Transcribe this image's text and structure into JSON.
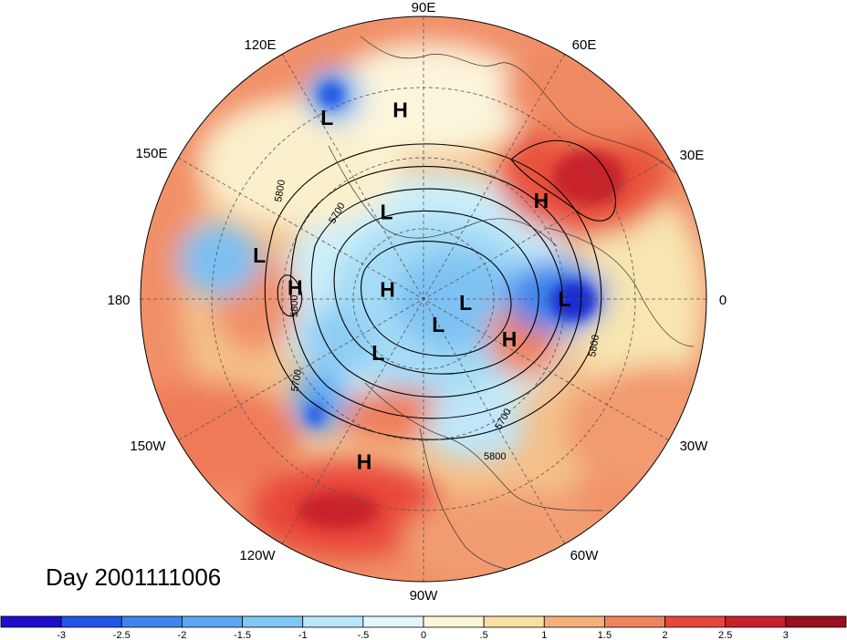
{
  "title": "Day 2001111006",
  "longitude_labels": [
    {
      "text": "90E",
      "pos": "top"
    },
    {
      "text": "60E",
      "pos": "top-right"
    },
    {
      "text": "30E",
      "pos": "right-upper"
    },
    {
      "text": "0",
      "pos": "right"
    },
    {
      "text": "30W",
      "pos": "right-lower"
    },
    {
      "text": "60W",
      "pos": "bottom-right"
    },
    {
      "text": "90W",
      "pos": "bottom"
    },
    {
      "text": "120W",
      "pos": "bottom-left"
    },
    {
      "text": "150W",
      "pos": "left-lower"
    },
    {
      "text": "180",
      "pos": "left"
    },
    {
      "text": "150E",
      "pos": "left-upper"
    },
    {
      "text": "120E",
      "pos": "top-left"
    }
  ],
  "pressure_centers": [
    {
      "type": "L",
      "lon_deg": 118,
      "colat_deg": 72
    },
    {
      "type": "H",
      "lon_deg": 97,
      "colat_deg": 68
    },
    {
      "type": "H",
      "lon_deg": 40,
      "colat_deg": 57
    },
    {
      "type": "L",
      "lon_deg": 113,
      "colat_deg": 37
    },
    {
      "type": "L",
      "lon_deg": 165,
      "colat_deg": 62
    },
    {
      "type": "H",
      "lon_deg": 175,
      "colat_deg": 49
    },
    {
      "type": "H",
      "lon_deg": 165,
      "colat_deg": 15
    },
    {
      "type": "L",
      "lon_deg": 355,
      "colat_deg": 17
    },
    {
      "type": "L",
      "lon_deg": 230,
      "colat_deg": 28
    },
    {
      "type": "L",
      "lon_deg": 300,
      "colat_deg": 12
    },
    {
      "type": "H",
      "lon_deg": 335,
      "colat_deg": 37
    },
    {
      "type": "L",
      "lon_deg": 0,
      "colat_deg": 53
    },
    {
      "type": "H",
      "lon_deg": 250,
      "colat_deg": 63
    }
  ],
  "contour_labels": [
    "5800",
    "5800",
    "5700",
    "5700",
    "5800",
    "5800",
    "5700"
  ],
  "colorbar": {
    "ticks": [
      "-3",
      "-2.5",
      "-2",
      "-1.5",
      "-1",
      "-.5",
      "0",
      ".5",
      "1",
      "1.5",
      "2",
      "2.5",
      "3"
    ],
    "colors": [
      "#1f0fcc",
      "#2255e6",
      "#3d85ee",
      "#5aa8f2",
      "#7fc8f6",
      "#b8e6fa",
      "#e4f6fb",
      "#fbf6d9",
      "#f9dfa3",
      "#f6b07b",
      "#f1845e",
      "#e8463a",
      "#c8202a",
      "#9b0f1e"
    ]
  }
}
